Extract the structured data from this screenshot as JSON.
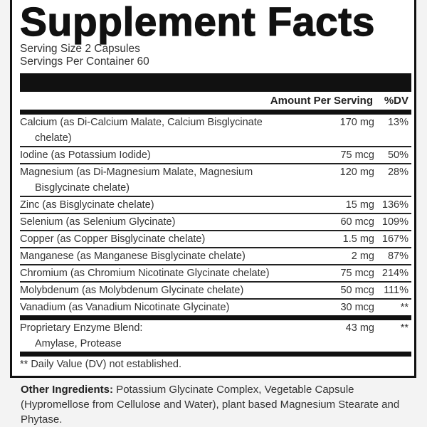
{
  "title": "Supplement Facts",
  "serving_size": "Serving Size 2 Capsules",
  "servings_per_container": "Servings Per Container 60",
  "header": {
    "amount": "Amount Per Serving",
    "dv": "%DV"
  },
  "nutrients": [
    {
      "name": "Calcium (as Di-Calcium Malate, Calcium Bisglycinate",
      "name_cont": "chelate)",
      "amount": "170 mg",
      "dv": "13%"
    },
    {
      "name": "Iodine (as Potassium Iodide)",
      "amount": "75 mcg",
      "dv": "50%"
    },
    {
      "name": "Magnesium (as Di-Magnesium Malate, Magnesium",
      "name_cont": "Bisglycinate chelate)",
      "amount": "120 mg",
      "dv": "28%"
    },
    {
      "name": "Zinc (as Bisglycinate chelate)",
      "amount": "15 mg",
      "dv": "136%"
    },
    {
      "name": "Selenium (as Selenium Glycinate)",
      "amount": "60 mcg",
      "dv": "109%"
    },
    {
      "name": "Copper (as Copper Bisglycinate chelate)",
      "amount": "1.5 mg",
      "dv": "167%"
    },
    {
      "name": "Manganese (as Manganese Bisglycinate chelate)",
      "amount": "2 mg",
      "dv": "87%"
    },
    {
      "name": "Chromium (as Chromium Nicotinate Glycinate chelate)",
      "amount": "75 mcg",
      "dv": "214%"
    },
    {
      "name": "Molybdenum (as Molybdenum Glycinate chelate)",
      "amount": "50 mcg",
      "dv": "111%"
    },
    {
      "name": "Vanadium (as Vanadium Nicotinate Glycinate)",
      "amount": "30 mcg",
      "dv": "**"
    }
  ],
  "blend": {
    "name": "Proprietary Enzyme Blend:",
    "name_cont": "Amylase, Protease",
    "amount": "43 mg",
    "dv": "**"
  },
  "footnote": "**  Daily Value (DV) not established.",
  "other_ingredients": {
    "label": "Other Ingredients:",
    "text": " Potassium Glycinate Complex, Vegetable Capsule (Hypromellose from Cellulose and Water), plant based Magnesium Stearate and Phytase."
  }
}
